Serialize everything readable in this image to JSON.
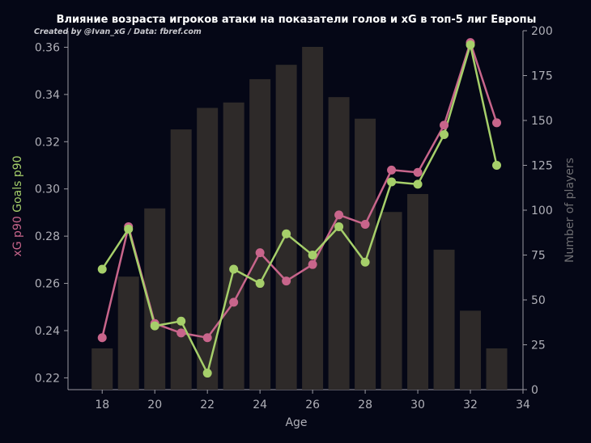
{
  "chart_data": {
    "type": "bar+line",
    "title": "Влияние возраста игроков атаки на показатели голов и xG в топ-5 лиг Европы",
    "subtitle": "Created by @Ivan_xG / Data: fbref.com",
    "xlabel": "Age",
    "ylabel_left_parts": [
      {
        "text": "xG p90",
        "color": "#c8658b"
      },
      {
        "text": "Goals p90",
        "color": "#a6cf6a"
      }
    ],
    "ylabel_right": "Number of players",
    "xlim": [
      16.7,
      34
    ],
    "xticks": [
      18,
      20,
      22,
      24,
      26,
      28,
      30,
      32,
      34
    ],
    "ylim_left": [
      0.215,
      0.367
    ],
    "yticks_left": [
      "0.22",
      "0.24",
      "0.26",
      "0.28",
      "0.30",
      "0.32",
      "0.34",
      "0.36"
    ],
    "ylim_right": [
      0,
      200
    ],
    "yticks_right": [
      "0",
      "25",
      "50",
      "75",
      "100",
      "125",
      "150",
      "175",
      "200"
    ],
    "x": [
      18,
      19,
      20,
      21,
      22,
      23,
      24,
      25,
      26,
      27,
      28,
      29,
      30,
      31,
      32,
      33
    ],
    "bars": {
      "name": "Number of players",
      "axis": "right",
      "color": "#2e2a29",
      "values": [
        23,
        63,
        101,
        145,
        157,
        160,
        173,
        181,
        191,
        163,
        151,
        99,
        109,
        78,
        44,
        23
      ]
    },
    "series": [
      {
        "name": "xG p90",
        "axis": "left",
        "color": "#c8658b",
        "values": [
          0.237,
          0.284,
          0.243,
          0.239,
          0.237,
          0.252,
          0.273,
          0.261,
          0.268,
          0.289,
          0.285,
          0.308,
          0.307,
          0.327,
          0.362,
          0.328
        ]
      },
      {
        "name": "Goals p90",
        "axis": "left",
        "color": "#a6cf6a",
        "values": [
          0.266,
          0.283,
          0.242,
          0.244,
          0.222,
          0.266,
          0.26,
          0.281,
          0.272,
          0.284,
          0.269,
          0.303,
          0.302,
          0.323,
          0.361,
          0.31
        ]
      }
    ]
  }
}
